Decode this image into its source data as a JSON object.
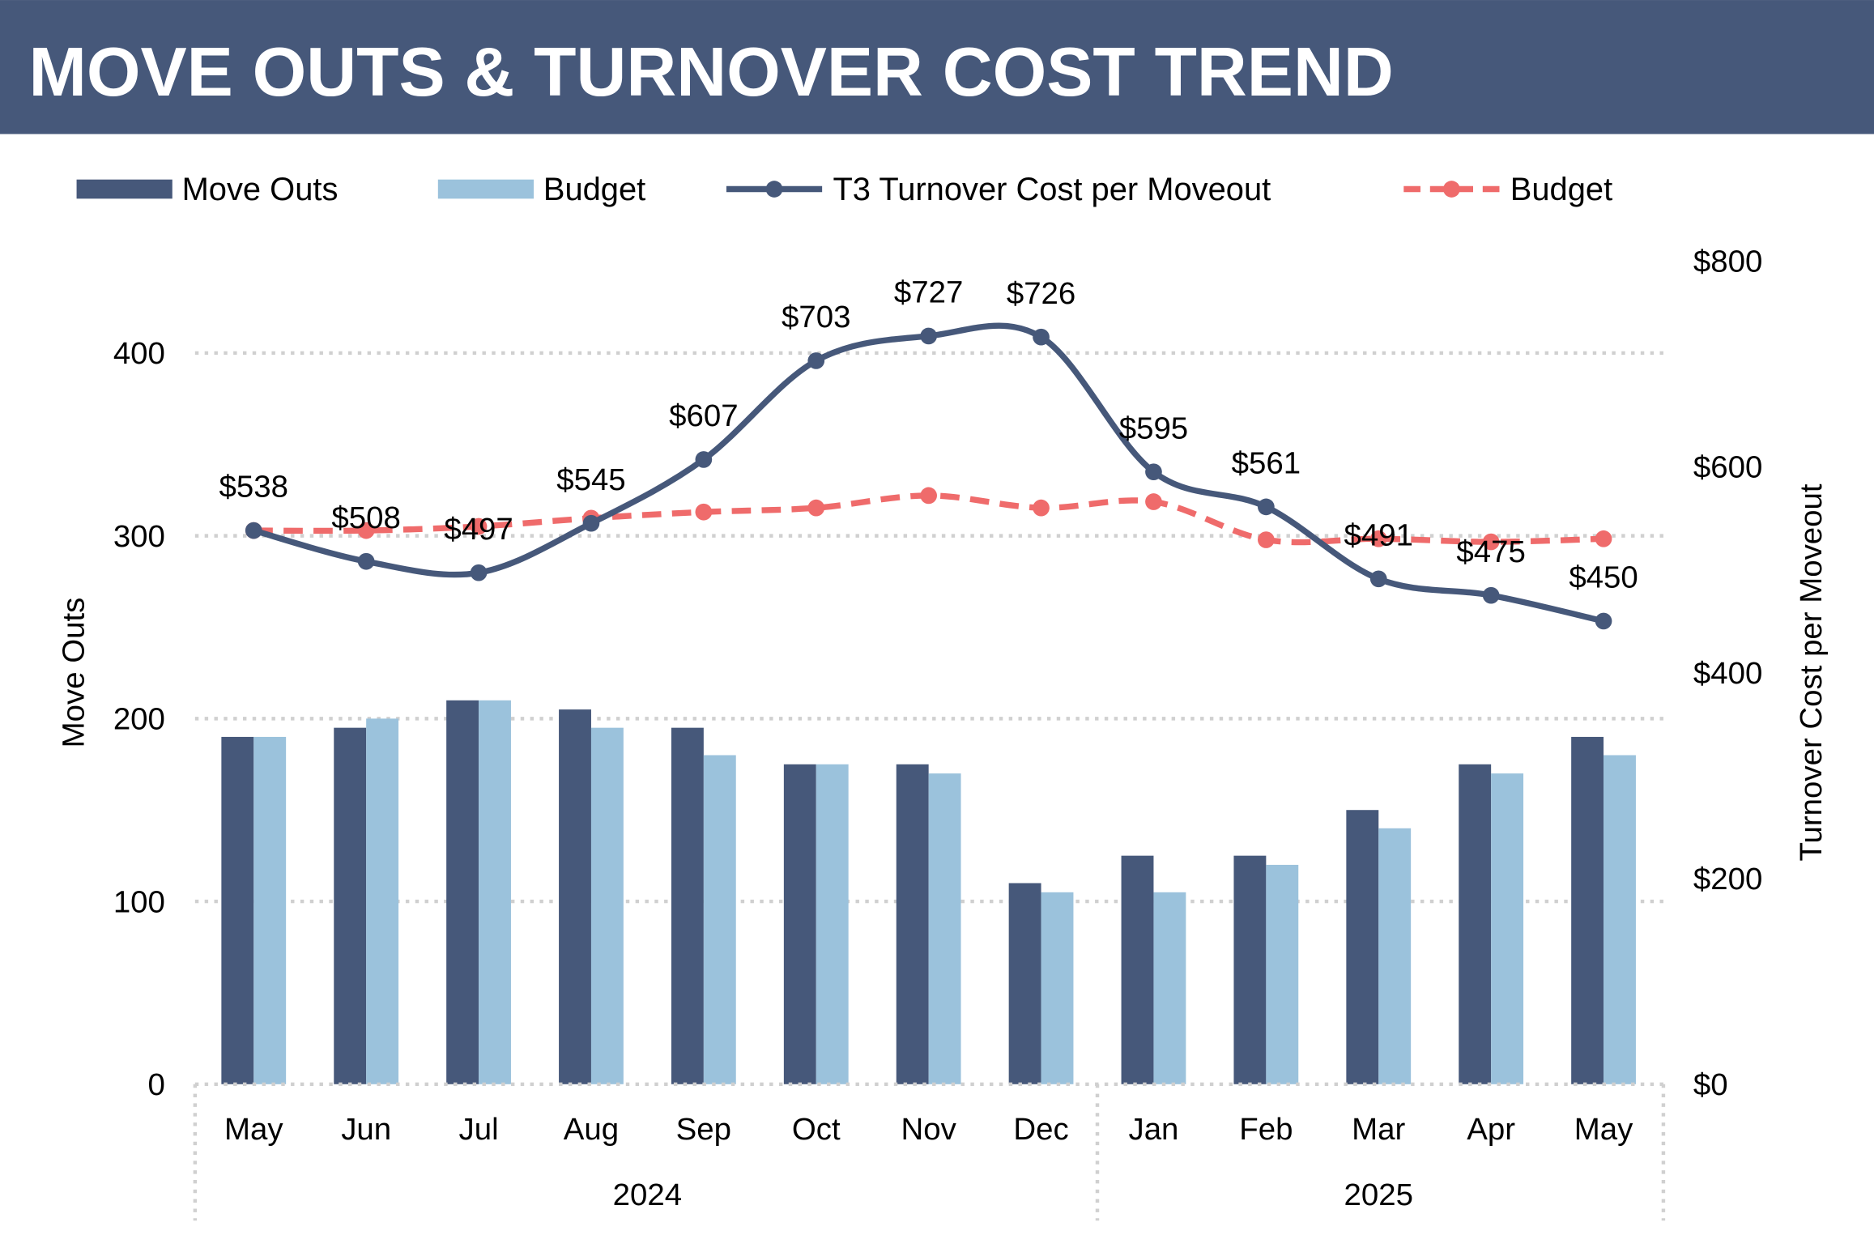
{
  "header": {
    "title": "MOVE OUTS & TURNOVER COST TREND"
  },
  "colors": {
    "header_bg": "#46587a",
    "move_outs": "#46587a",
    "budget_bars": "#9bc2dc",
    "cost_line": "#46587a",
    "cost_budget": "#ef6b6b"
  },
  "chart_data": {
    "type": "bar+line",
    "categories": [
      "May",
      "Jun",
      "Jul",
      "Aug",
      "Sep",
      "Oct",
      "Nov",
      "Dec",
      "Jan",
      "Feb",
      "Mar",
      "Apr",
      "May"
    ],
    "year_groups": [
      {
        "label": "2024",
        "count": 8
      },
      {
        "label": "2025",
        "count": 5
      }
    ],
    "ylabel": "Move Outs",
    "ylabel_right": "Turnover Cost per Moveout",
    "ylim": [
      0,
      450
    ],
    "yticks": [
      0,
      100,
      200,
      300,
      400
    ],
    "ylim_right": [
      0,
      800
    ],
    "yticks_right": [
      "$0",
      "$200",
      "$400",
      "$600",
      "$800"
    ],
    "grid": true,
    "legend_position": "top",
    "series": [
      {
        "name": "Move Outs",
        "kind": "bar",
        "axis": "left",
        "values": [
          190,
          195,
          210,
          205,
          195,
          175,
          175,
          110,
          125,
          125,
          150,
          175,
          190
        ]
      },
      {
        "name": "Budget",
        "kind": "bar",
        "axis": "left",
        "values": [
          190,
          200,
          210,
          195,
          180,
          175,
          170,
          105,
          105,
          120,
          140,
          170,
          180
        ]
      },
      {
        "name": "T3 Turnover Cost per Moveout",
        "kind": "line",
        "axis": "right",
        "values": [
          538,
          508,
          497,
          545,
          607,
          703,
          727,
          726,
          595,
          561,
          491,
          475,
          450
        ],
        "labels": [
          "$538",
          "$508",
          "$497",
          "$545",
          "$607",
          "$703",
          "$727",
          "$726",
          "$595",
          "$561",
          "$491",
          "$475",
          "$450"
        ]
      },
      {
        "name": "Budget",
        "kind": "dashed-line",
        "axis": "right",
        "values": [
          538,
          538,
          542,
          550,
          556,
          560,
          572,
          560,
          566,
          529,
          530,
          527,
          530
        ]
      }
    ]
  }
}
